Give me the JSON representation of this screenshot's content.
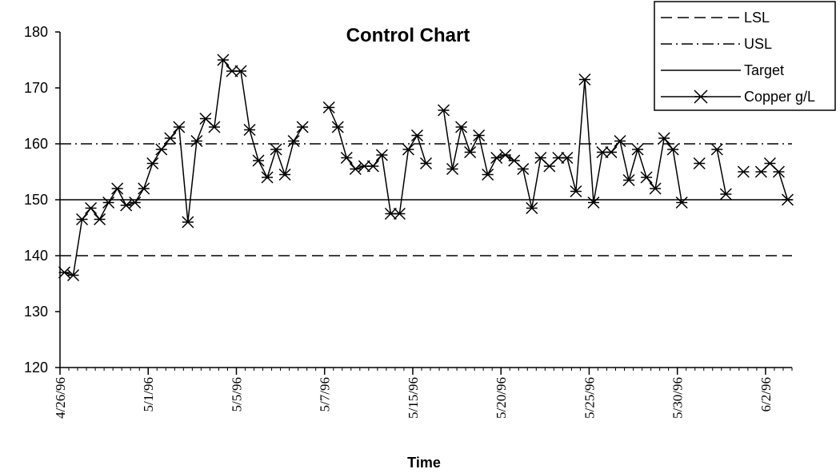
{
  "chart_data": {
    "type": "line",
    "title": "Control Chart",
    "xlabel": "Time",
    "ylabel": "",
    "ylim": [
      120,
      180
    ],
    "yticks": [
      "120",
      "130",
      "140",
      "150",
      "160",
      "170",
      "180"
    ],
    "x_tick_labels": [
      "4/26/96",
      "5/1/96",
      "5/5/96",
      "5/7/96",
      "5/15/96",
      "5/20/96",
      "5/25/96",
      "5/30/96",
      "6/2/96"
    ],
    "grid": false,
    "legend_position": "top-right",
    "reference_lines": [
      {
        "name": "LSL",
        "value": 140,
        "style": "dashed"
      },
      {
        "name": "USL",
        "value": 160,
        "style": "dash-dot"
      },
      {
        "name": "Target",
        "value": 150,
        "style": "solid"
      }
    ],
    "series": [
      {
        "name": "Copper g/L",
        "marker": "asterisk",
        "values": [
          137,
          136.5,
          146.5,
          148.5,
          146.5,
          149.5,
          152,
          149,
          149.5,
          152,
          156.5,
          159,
          161,
          163,
          146,
          160.5,
          164.5,
          163,
          175,
          173,
          173,
          162.5,
          157,
          154,
          159,
          154.5,
          160.5,
          163,
          null,
          null,
          166.5,
          163,
          157.5,
          155.5,
          156,
          156,
          158,
          147.5,
          147.5,
          159,
          161.5,
          156.5,
          null,
          166,
          155.5,
          163,
          158.5,
          161.5,
          154.5,
          157.5,
          158,
          157,
          155.5,
          148.5,
          157.5,
          156,
          157.5,
          157.5,
          151.5,
          171.5,
          149.5,
          158.5,
          158.5,
          160.5,
          153.5,
          159,
          154,
          152,
          161,
          159,
          149.5,
          null,
          156.5,
          null,
          159,
          151,
          null,
          155,
          null,
          155,
          156.5,
          155,
          150
        ]
      }
    ],
    "colors": {
      "line": "#000000",
      "background": "#ffffff"
    }
  }
}
